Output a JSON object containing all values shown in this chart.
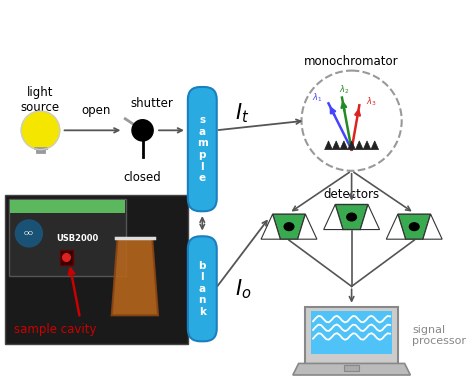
{
  "bg_color": "#ffffff",
  "light_source_label": "light\nsource",
  "open_label": "open",
  "shutter_label": "shutter",
  "closed_label": "closed",
  "sample_label": "s\na\nm\np\nl\ne",
  "blank_label": "b\nl\na\nn\nk",
  "monochromator_label": "monochromator",
  "detectors_label": "detectors",
  "signal_processor_label": "signal\nprocessor",
  "sample_cavity_label": "sample cavity",
  "tube_color": "#29abe2",
  "tube_edge": "#1a7fbf",
  "arrow_color": "#555555",
  "sample_cavity_color": "#cc0000",
  "lambda1_color": "#4444ff",
  "lambda2_color": "#228B22",
  "lambda3_color": "#dd2222",
  "detector_color": "#3aaa50",
  "laptop_screen_color": "#4fc3f7",
  "mono_circle_color": "#999999",
  "grating_color": "#222222"
}
